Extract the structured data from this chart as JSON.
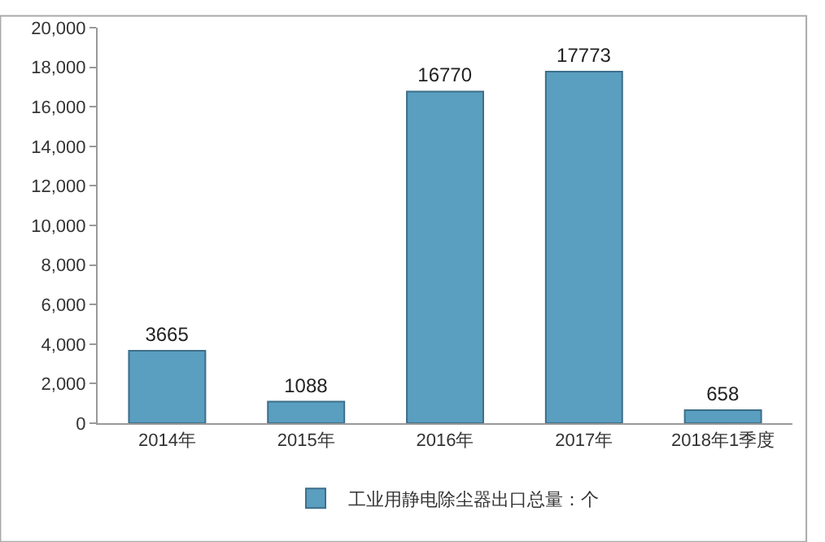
{
  "chart_data": {
    "type": "bar",
    "categories": [
      "2014年",
      "2015年",
      "2016年",
      "2017年",
      "2018年1季度"
    ],
    "series": [
      {
        "name": "工业用静电除尘器出口总量：个",
        "color": "#5a9ec0",
        "values": [
          3665,
          1088,
          16770,
          17773,
          658
        ]
      }
    ],
    "ylim": [
      0,
      20000
    ],
    "yticks": [
      {
        "value": 0,
        "label": "0"
      },
      {
        "value": 2000,
        "label": "2,000"
      },
      {
        "value": 4000,
        "label": "4,000"
      },
      {
        "value": 6000,
        "label": "6,000"
      },
      {
        "value": 8000,
        "label": "8,000"
      },
      {
        "value": 10000,
        "label": "10,000"
      },
      {
        "value": 12000,
        "label": "12,000"
      },
      {
        "value": 14000,
        "label": "14,000"
      },
      {
        "value": 16000,
        "label": "16,000"
      },
      {
        "value": 18000,
        "label": "18,000"
      },
      {
        "value": 20000,
        "label": "20,000"
      }
    ],
    "data_labels": true,
    "legend": "bottom"
  }
}
